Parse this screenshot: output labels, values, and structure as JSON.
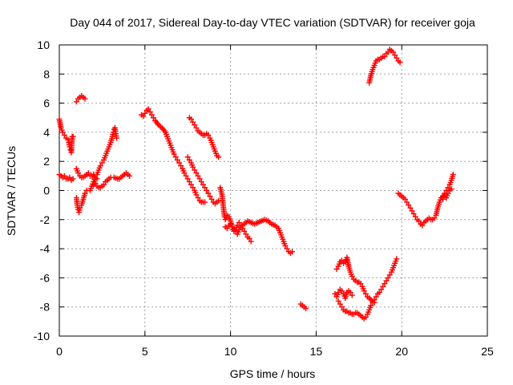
{
  "chart_data": {
    "type": "scatter",
    "title": "Day 044 of 2017, Sidereal Day-to-day VTEC variation (SDTVAR) for receiver goja",
    "xlabel": "GPS time / hours",
    "ylabel": "SDTVAR / TECUs",
    "xlim": [
      0,
      25
    ],
    "ylim": [
      -10,
      10
    ],
    "x_ticks": [
      "0",
      "5",
      "10",
      "15",
      "20",
      "25"
    ],
    "y_ticks": [
      "10",
      "8",
      "6",
      "4",
      "2",
      "0",
      "-2",
      "-4",
      "-6",
      "-8",
      "-10"
    ],
    "grid": true,
    "legend": "none",
    "marker": "plus",
    "color": "#ff0000",
    "segments": [
      [
        [
          0.0,
          4.9
        ],
        [
          0.1,
          4.3
        ],
        [
          0.2,
          4.0
        ],
        [
          0.3,
          3.8
        ],
        [
          0.4,
          3.6
        ],
        [
          0.5,
          3.5
        ],
        [
          0.55,
          3.3
        ],
        [
          0.6,
          3.0
        ],
        [
          0.65,
          2.8
        ],
        [
          0.7,
          2.6
        ],
        [
          0.75,
          3.7
        ],
        [
          0.8,
          3.7
        ]
      ],
      [
        [
          0.0,
          1.1
        ],
        [
          0.1,
          1.0
        ],
        [
          0.2,
          0.9
        ],
        [
          0.3,
          1.0
        ],
        [
          0.4,
          0.8
        ],
        [
          0.5,
          0.8
        ],
        [
          0.6,
          0.9
        ],
        [
          0.7,
          0.7
        ],
        [
          0.8,
          0.8
        ]
      ],
      [
        [
          1.0,
          1.5
        ],
        [
          1.1,
          1.2
        ],
        [
          1.2,
          1.0
        ],
        [
          1.3,
          0.9
        ],
        [
          1.4,
          0.9
        ],
        [
          1.5,
          1.0
        ],
        [
          1.6,
          1.1
        ],
        [
          1.7,
          1.2
        ],
        [
          1.8,
          1.0
        ],
        [
          1.9,
          1.0
        ],
        [
          2.0,
          1.1
        ],
        [
          2.1,
          0.8
        ],
        [
          2.2,
          0.8
        ]
      ],
      [
        [
          1.0,
          6.1
        ],
        [
          1.1,
          6.3
        ],
        [
          1.2,
          6.4
        ],
        [
          1.3,
          6.5
        ],
        [
          1.4,
          6.4
        ],
        [
          1.5,
          6.3
        ]
      ],
      [
        [
          1.0,
          -0.5
        ],
        [
          1.05,
          -1.0
        ],
        [
          1.1,
          -1.3
        ],
        [
          1.15,
          -1.5
        ],
        [
          1.2,
          -1.2
        ],
        [
          1.3,
          -1.0
        ],
        [
          1.4,
          -0.6
        ],
        [
          1.5,
          -0.2
        ],
        [
          1.6,
          0.0
        ]
      ],
      [
        [
          1.8,
          0.0
        ],
        [
          1.9,
          0.3
        ],
        [
          2.0,
          0.6
        ],
        [
          2.1,
          0.9
        ],
        [
          2.2,
          1.1
        ],
        [
          2.3,
          1.4
        ],
        [
          2.4,
          1.7
        ],
        [
          2.5,
          1.9
        ],
        [
          2.6,
          2.1
        ],
        [
          2.7,
          2.4
        ],
        [
          2.8,
          2.7
        ],
        [
          2.9,
          3.0
        ],
        [
          3.0,
          3.3
        ],
        [
          3.1,
          3.7
        ],
        [
          3.15,
          4.0
        ],
        [
          3.2,
          4.2
        ],
        [
          3.25,
          4.3
        ],
        [
          3.3,
          3.9
        ],
        [
          3.35,
          3.6
        ]
      ],
      [
        [
          2.0,
          0.4
        ],
        [
          2.1,
          0.5
        ],
        [
          2.2,
          0.3
        ],
        [
          2.3,
          0.2
        ],
        [
          2.4,
          0.2
        ],
        [
          2.5,
          0.3
        ],
        [
          2.6,
          0.4
        ],
        [
          2.7,
          0.6
        ],
        [
          2.8,
          0.7
        ],
        [
          2.9,
          0.8
        ],
        [
          3.0,
          0.9
        ],
        [
          3.2,
          0.9
        ],
        [
          3.4,
          0.8
        ],
        [
          3.5,
          0.8
        ],
        [
          3.6,
          0.9
        ],
        [
          3.7,
          1.0
        ],
        [
          3.8,
          1.1
        ],
        [
          3.9,
          1.2
        ],
        [
          4.0,
          1.1
        ],
        [
          4.1,
          1.0
        ]
      ],
      [
        [
          4.8,
          5.2
        ],
        [
          4.9,
          5.1
        ],
        [
          5.0,
          5.3
        ],
        [
          5.1,
          5.5
        ],
        [
          5.2,
          5.6
        ],
        [
          5.3,
          5.4
        ],
        [
          5.4,
          5.2
        ],
        [
          5.5,
          5.0
        ],
        [
          5.6,
          4.8
        ],
        [
          5.8,
          4.5
        ],
        [
          6.0,
          4.3
        ],
        [
          6.2,
          4.0
        ],
        [
          6.3,
          3.7
        ],
        [
          6.4,
          3.4
        ],
        [
          6.5,
          3.1
        ],
        [
          6.6,
          2.8
        ],
        [
          6.7,
          2.5
        ],
        [
          6.8,
          2.3
        ],
        [
          6.9,
          2.1
        ],
        [
          7.0,
          1.9
        ],
        [
          7.1,
          1.7
        ],
        [
          7.2,
          1.5
        ],
        [
          7.3,
          1.2
        ],
        [
          7.4,
          1.0
        ],
        [
          7.5,
          0.8
        ],
        [
          7.6,
          0.6
        ],
        [
          7.7,
          0.4
        ],
        [
          7.8,
          0.2
        ],
        [
          7.9,
          0.0
        ],
        [
          8.0,
          -0.3
        ],
        [
          8.1,
          -0.5
        ],
        [
          8.2,
          -0.7
        ],
        [
          8.3,
          -0.8
        ],
        [
          8.4,
          -0.8
        ],
        [
          8.5,
          -0.8
        ]
      ],
      [
        [
          7.5,
          2.3
        ],
        [
          7.6,
          2.1
        ],
        [
          7.7,
          1.9
        ],
        [
          7.8,
          1.6
        ],
        [
          7.9,
          1.4
        ],
        [
          8.0,
          1.2
        ],
        [
          8.1,
          1.0
        ],
        [
          8.2,
          0.8
        ],
        [
          8.3,
          0.6
        ],
        [
          8.4,
          0.4
        ],
        [
          8.5,
          0.2
        ],
        [
          8.6,
          0.0
        ],
        [
          8.7,
          -0.2
        ],
        [
          8.8,
          -0.4
        ],
        [
          8.9,
          -0.6
        ],
        [
          9.0,
          -0.8
        ],
        [
          9.1,
          -0.9
        ],
        [
          9.2,
          -0.8
        ],
        [
          9.3,
          -0.7
        ]
      ],
      [
        [
          7.6,
          5.0
        ],
        [
          7.7,
          4.9
        ],
        [
          7.8,
          4.7
        ],
        [
          7.9,
          4.5
        ],
        [
          8.0,
          4.3
        ],
        [
          8.1,
          4.1
        ],
        [
          8.2,
          4.0
        ],
        [
          8.3,
          3.9
        ],
        [
          8.4,
          3.8
        ],
        [
          8.5,
          3.8
        ],
        [
          8.6,
          3.9
        ],
        [
          8.7,
          3.8
        ],
        [
          8.8,
          3.6
        ],
        [
          8.9,
          3.3
        ],
        [
          9.0,
          3.0
        ],
        [
          9.1,
          2.7
        ],
        [
          9.2,
          2.4
        ],
        [
          9.3,
          2.3
        ]
      ],
      [
        [
          9.4,
          0.2
        ],
        [
          9.5,
          -0.3
        ],
        [
          9.55,
          -0.8
        ],
        [
          9.6,
          -1.3
        ],
        [
          9.65,
          -1.8
        ],
        [
          9.7,
          -2.0
        ],
        [
          9.8,
          -1.7
        ],
        [
          9.9,
          -1.8
        ],
        [
          10.0,
          -2.1
        ],
        [
          10.1,
          -2.5
        ],
        [
          10.2,
          -2.8
        ],
        [
          10.3,
          -2.7
        ],
        [
          10.4,
          -2.4
        ],
        [
          10.5,
          -2.2
        ],
        [
          10.6,
          -2.4
        ],
        [
          10.7,
          -2.6
        ],
        [
          10.8,
          -2.8
        ],
        [
          10.9,
          -3.0
        ],
        [
          11.0,
          -3.2
        ],
        [
          11.1,
          -3.3
        ],
        [
          11.2,
          -3.5
        ]
      ],
      [
        [
          9.7,
          -2.5
        ],
        [
          9.8,
          -2.6
        ],
        [
          9.9,
          -2.4
        ],
        [
          10.0,
          -2.3
        ],
        [
          10.1,
          -2.5
        ],
        [
          10.2,
          -2.7
        ],
        [
          10.3,
          -2.8
        ],
        [
          10.4,
          -3.0
        ],
        [
          10.5,
          -2.7
        ],
        [
          10.6,
          -2.5
        ],
        [
          10.7,
          -2.4
        ],
        [
          10.8,
          -2.3
        ],
        [
          10.9,
          -2.2
        ],
        [
          11.0,
          -2.1
        ],
        [
          11.2,
          -2.2
        ],
        [
          11.4,
          -2.3
        ],
        [
          11.6,
          -2.2
        ],
        [
          11.8,
          -2.1
        ],
        [
          12.0,
          -2.0
        ],
        [
          12.2,
          -2.1
        ],
        [
          12.4,
          -2.3
        ],
        [
          12.6,
          -2.4
        ],
        [
          12.8,
          -2.6
        ],
        [
          12.9,
          -2.9
        ],
        [
          13.0,
          -3.2
        ],
        [
          13.1,
          -3.5
        ],
        [
          13.2,
          -3.8
        ],
        [
          13.3,
          -4.0
        ],
        [
          13.4,
          -4.2
        ],
        [
          13.5,
          -4.3
        ],
        [
          13.6,
          -4.2
        ]
      ],
      [
        [
          14.1,
          -7.8
        ],
        [
          14.2,
          -7.9
        ],
        [
          14.3,
          -8.0
        ],
        [
          14.4,
          -8.1
        ]
      ],
      [
        [
          16.2,
          -5.4
        ],
        [
          16.3,
          -5.2
        ],
        [
          16.4,
          -4.9
        ],
        [
          16.5,
          -4.8
        ],
        [
          16.6,
          -5.0
        ],
        [
          16.7,
          -4.9
        ],
        [
          16.8,
          -4.6
        ],
        [
          16.9,
          -5.2
        ],
        [
          17.0,
          -5.6
        ],
        [
          17.1,
          -5.9
        ],
        [
          17.2,
          -6.1
        ],
        [
          17.3,
          -6.2
        ],
        [
          17.4,
          -6.3
        ],
        [
          17.5,
          -6.3
        ],
        [
          17.6,
          -6.4
        ],
        [
          17.7,
          -6.6
        ],
        [
          17.8,
          -6.9
        ],
        [
          17.9,
          -7.1
        ],
        [
          18.0,
          -7.3
        ],
        [
          18.1,
          -7.4
        ],
        [
          18.2,
          -7.5
        ],
        [
          18.3,
          -7.6
        ],
        [
          18.4,
          -7.7
        ]
      ],
      [
        [
          16.1,
          -7.1
        ],
        [
          16.2,
          -7.3
        ],
        [
          16.3,
          -7.0
        ],
        [
          16.4,
          -6.8
        ],
        [
          16.5,
          -6.9
        ],
        [
          16.6,
          -7.1
        ],
        [
          16.7,
          -7.4
        ],
        [
          16.8,
          -7.0
        ],
        [
          16.9,
          -6.9
        ],
        [
          17.0,
          -7.0
        ],
        [
          17.1,
          -7.2
        ]
      ],
      [
        [
          16.3,
          -7.6
        ],
        [
          16.4,
          -7.8
        ],
        [
          16.5,
          -8.0
        ],
        [
          16.6,
          -8.2
        ],
        [
          16.7,
          -8.3
        ],
        [
          16.8,
          -8.3
        ],
        [
          16.9,
          -8.4
        ],
        [
          17.0,
          -8.4
        ],
        [
          17.1,
          -8.5
        ],
        [
          17.2,
          -8.5
        ],
        [
          17.3,
          -8.4
        ],
        [
          17.4,
          -8.4
        ],
        [
          17.5,
          -8.5
        ],
        [
          17.6,
          -8.6
        ],
        [
          17.7,
          -8.7
        ],
        [
          17.8,
          -8.8
        ],
        [
          17.9,
          -8.7
        ],
        [
          18.0,
          -8.5
        ],
        [
          18.1,
          -8.2
        ],
        [
          18.2,
          -7.9
        ],
        [
          18.3,
          -7.7
        ],
        [
          18.4,
          -7.5
        ],
        [
          18.5,
          -7.3
        ],
        [
          18.6,
          -7.1
        ],
        [
          18.7,
          -7.0
        ],
        [
          18.8,
          -6.8
        ],
        [
          18.9,
          -6.6
        ],
        [
          19.0,
          -6.4
        ],
        [
          19.1,
          -6.2
        ],
        [
          19.2,
          -6.0
        ],
        [
          19.3,
          -5.8
        ],
        [
          19.4,
          -5.6
        ],
        [
          19.5,
          -5.3
        ],
        [
          19.6,
          -5.0
        ],
        [
          19.7,
          -4.7
        ]
      ],
      [
        [
          18.1,
          7.4
        ],
        [
          18.2,
          7.9
        ],
        [
          18.3,
          8.3
        ],
        [
          18.4,
          8.6
        ],
        [
          18.5,
          8.9
        ],
        [
          18.6,
          9.0
        ],
        [
          18.7,
          9.0
        ],
        [
          18.8,
          9.1
        ],
        [
          18.9,
          9.2
        ],
        [
          19.0,
          9.2
        ],
        [
          19.1,
          9.4
        ],
        [
          19.2,
          9.5
        ],
        [
          19.3,
          9.7
        ],
        [
          19.4,
          9.6
        ],
        [
          19.5,
          9.5
        ],
        [
          19.6,
          9.3
        ],
        [
          19.7,
          9.1
        ],
        [
          19.8,
          8.9
        ],
        [
          19.9,
          8.8
        ]
      ],
      [
        [
          19.8,
          -0.2
        ],
        [
          19.9,
          -0.3
        ],
        [
          20.0,
          -0.4
        ],
        [
          20.1,
          -0.5
        ],
        [
          20.2,
          -0.6
        ],
        [
          20.3,
          -0.8
        ],
        [
          20.4,
          -1.0
        ],
        [
          20.5,
          -1.2
        ],
        [
          20.6,
          -1.4
        ],
        [
          20.7,
          -1.6
        ],
        [
          20.8,
          -1.8
        ],
        [
          20.9,
          -2.0
        ],
        [
          21.0,
          -2.1
        ],
        [
          21.1,
          -2.3
        ],
        [
          21.2,
          -2.4
        ],
        [
          21.3,
          -2.2
        ],
        [
          21.4,
          -2.1
        ],
        [
          21.5,
          -2.0
        ],
        [
          21.6,
          -1.9
        ],
        [
          21.7,
          -2.0
        ],
        [
          21.8,
          -2.0
        ],
        [
          21.9,
          -1.9
        ],
        [
          22.0,
          -1.7
        ],
        [
          22.1,
          -1.2
        ],
        [
          22.2,
          -0.8
        ],
        [
          22.3,
          -0.5
        ],
        [
          22.4,
          -0.4
        ],
        [
          22.5,
          -0.2
        ],
        [
          22.6,
          0.0
        ],
        [
          22.7,
          0.2
        ],
        [
          22.8,
          0.4
        ],
        [
          22.9,
          0.7
        ],
        [
          23.0,
          1.1
        ]
      ],
      [
        [
          22.4,
          -0.6
        ],
        [
          22.5,
          -0.3
        ],
        [
          22.6,
          -0.5
        ],
        [
          22.7,
          -0.2
        ],
        [
          22.8,
          0.0
        ],
        [
          22.9,
          0.1
        ]
      ]
    ]
  }
}
